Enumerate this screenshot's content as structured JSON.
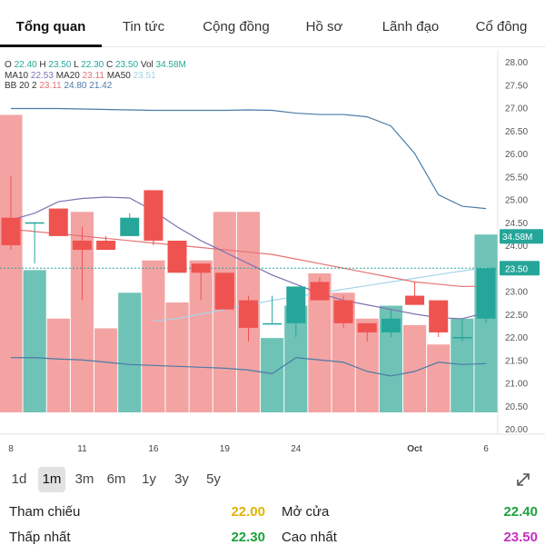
{
  "tabs": [
    {
      "label": "Tổng quan",
      "active": true
    },
    {
      "label": "Tin tức",
      "active": false
    },
    {
      "label": "Cộng đồng",
      "active": false
    },
    {
      "label": "Hồ sơ",
      "active": false
    },
    {
      "label": "Lãnh đạo",
      "active": false
    },
    {
      "label": "Cổ đông",
      "active": false
    }
  ],
  "legend": {
    "ohlc": {
      "o_label": "O",
      "o": "22.40",
      "h_label": "H",
      "h": "23.50",
      "l_label": "L",
      "l": "22.30",
      "c_label": "C",
      "c": "23.50",
      "vol_label": "Vol",
      "vol": "34.58M"
    },
    "ma": {
      "ma10_label": "MA10",
      "ma10": "22.53",
      "ma20_label": "MA20",
      "ma20": "23.11",
      "ma50_label": "MA50",
      "ma50": "23.51"
    },
    "bb": {
      "label": "BB 20 2",
      "mid": "23.11",
      "upper": "24.80",
      "lower": "21.42"
    }
  },
  "chart_data": {
    "type": "candlestick",
    "price_axis": {
      "min": 20.0,
      "max": 28.0,
      "ticks": [
        "28.00",
        "27.50",
        "27.00",
        "26.50",
        "26.00",
        "25.50",
        "25.00",
        "24.50",
        "24.00",
        "23.50",
        "23.00",
        "22.50",
        "22.00",
        "21.50",
        "21.00",
        "20.50",
        "20.00"
      ]
    },
    "x_ticks": [
      {
        "label": "8",
        "index": 0
      },
      {
        "label": "11",
        "index": 3
      },
      {
        "label": "16",
        "index": 6
      },
      {
        "label": "19",
        "index": 9
      },
      {
        "label": "24",
        "index": 12
      },
      {
        "label": "Oct",
        "index": 17
      },
      {
        "label": "6",
        "index": 20
      }
    ],
    "last_price_label": "23.50",
    "last_volume_label": "34.58M",
    "candles": [
      {
        "o": 24.6,
        "h": 25.5,
        "l": 23.9,
        "c": 24.0
      },
      {
        "o": 24.5,
        "h": 24.5,
        "l": 23.6,
        "c": 24.5
      },
      {
        "o": 24.8,
        "h": 24.8,
        "l": 24.2,
        "c": 24.2
      },
      {
        "o": 24.1,
        "h": 24.4,
        "l": 22.8,
        "c": 23.9
      },
      {
        "o": 24.1,
        "h": 24.2,
        "l": 23.9,
        "c": 23.9
      },
      {
        "o": 24.2,
        "h": 24.7,
        "l": 24.2,
        "c": 24.6
      },
      {
        "o": 25.2,
        "h": 25.2,
        "l": 24.0,
        "c": 24.1
      },
      {
        "o": 24.1,
        "h": 24.1,
        "l": 23.4,
        "c": 23.4
      },
      {
        "o": 23.6,
        "h": 23.6,
        "l": 22.8,
        "c": 23.4
      },
      {
        "o": 23.4,
        "h": 23.4,
        "l": 22.6,
        "c": 22.6
      },
      {
        "o": 22.8,
        "h": 22.9,
        "l": 21.9,
        "c": 22.2
      },
      {
        "o": 22.3,
        "h": 22.9,
        "l": 22.3,
        "c": 22.3
      },
      {
        "o": 22.3,
        "h": 23.1,
        "l": 22.0,
        "c": 23.1
      },
      {
        "o": 23.2,
        "h": 23.3,
        "l": 22.8,
        "c": 22.8
      },
      {
        "o": 22.8,
        "h": 22.9,
        "l": 22.2,
        "c": 22.3
      },
      {
        "o": 22.3,
        "h": 22.3,
        "l": 21.9,
        "c": 22.1
      },
      {
        "o": 22.1,
        "h": 22.6,
        "l": 22.0,
        "c": 22.4
      },
      {
        "o": 22.9,
        "h": 23.2,
        "l": 22.7,
        "c": 22.7
      },
      {
        "o": 22.8,
        "h": 22.8,
        "l": 22.0,
        "c": 22.1
      },
      {
        "o": 22.0,
        "h": 22.4,
        "l": 21.9,
        "c": 22.0
      },
      {
        "o": 22.4,
        "h": 23.5,
        "l": 22.3,
        "c": 23.5
      }
    ],
    "volumes": [
      0.92,
      0.44,
      0.29,
      0.62,
      0.26,
      0.37,
      0.47,
      0.34,
      0.47,
      0.62,
      0.62,
      0.23,
      0.33,
      0.43,
      0.37,
      0.29,
      0.33,
      0.27,
      0.21,
      0.29,
      0.55
    ],
    "ma10": [
      24.55,
      24.7,
      24.95,
      25.02,
      25.05,
      25.03,
      24.75,
      24.4,
      24.1,
      23.85,
      23.6,
      23.35,
      23.15,
      22.95,
      22.8,
      22.7,
      22.6,
      22.5,
      22.42,
      22.4,
      22.53
    ],
    "ma20": [
      24.35,
      24.3,
      24.25,
      24.2,
      24.15,
      24.1,
      24.05,
      24.0,
      23.95,
      23.9,
      23.85,
      23.8,
      23.7,
      23.6,
      23.5,
      23.4,
      23.3,
      23.2,
      23.15,
      23.1,
      23.11
    ],
    "ma50": [
      null,
      null,
      null,
      null,
      null,
      null,
      22.35,
      22.4,
      22.5,
      22.6,
      22.7,
      22.8,
      22.88,
      22.96,
      23.04,
      23.12,
      23.2,
      23.28,
      23.36,
      23.44,
      23.51
    ],
    "bb_upper": [
      26.98,
      26.98,
      26.98,
      26.97,
      26.96,
      26.95,
      26.94,
      26.94,
      26.94,
      26.94,
      26.95,
      26.94,
      26.88,
      26.85,
      26.85,
      26.8,
      26.6,
      26.0,
      25.1,
      24.85,
      24.8
    ],
    "bb_lower": [
      21.55,
      21.55,
      21.52,
      21.5,
      21.45,
      21.4,
      21.38,
      21.36,
      21.34,
      21.32,
      21.28,
      21.2,
      21.55,
      21.5,
      21.45,
      21.25,
      21.15,
      21.25,
      21.45,
      21.4,
      21.42
    ]
  },
  "colors": {
    "up": "#26a69a",
    "down": "#ef5350",
    "up_vol": "#6fc2b6",
    "down_vol": "#f4a3a3",
    "ma10": "#7e72b0",
    "ma20": "#e57373",
    "ma50": "#a5d6e8",
    "bb": "#4a7ba6",
    "grid": "#efefef",
    "price_line": "#26a69a"
  },
  "ranges": [
    {
      "label": "1d",
      "active": false
    },
    {
      "label": "1m",
      "active": true
    },
    {
      "label": "3m",
      "active": false
    },
    {
      "label": "6m",
      "active": false
    },
    {
      "label": "1y",
      "active": false
    },
    {
      "label": "3y",
      "active": false
    },
    {
      "label": "5y",
      "active": false
    }
  ],
  "stats": {
    "tham_chieu_label": "Tham chiếu",
    "tham_chieu": "22.00",
    "tham_chieu_color": "#e0b400",
    "mo_cua_label": "Mở cửa",
    "mo_cua": "22.40",
    "mo_cua_color": "#1aa33c",
    "thap_nhat_label": "Thấp nhất",
    "thap_nhat": "22.30",
    "thap_nhat_color": "#1aa33c",
    "cao_nhat_label": "Cao nhất",
    "cao_nhat": "23.50",
    "cao_nhat_color": "#c530c0"
  }
}
